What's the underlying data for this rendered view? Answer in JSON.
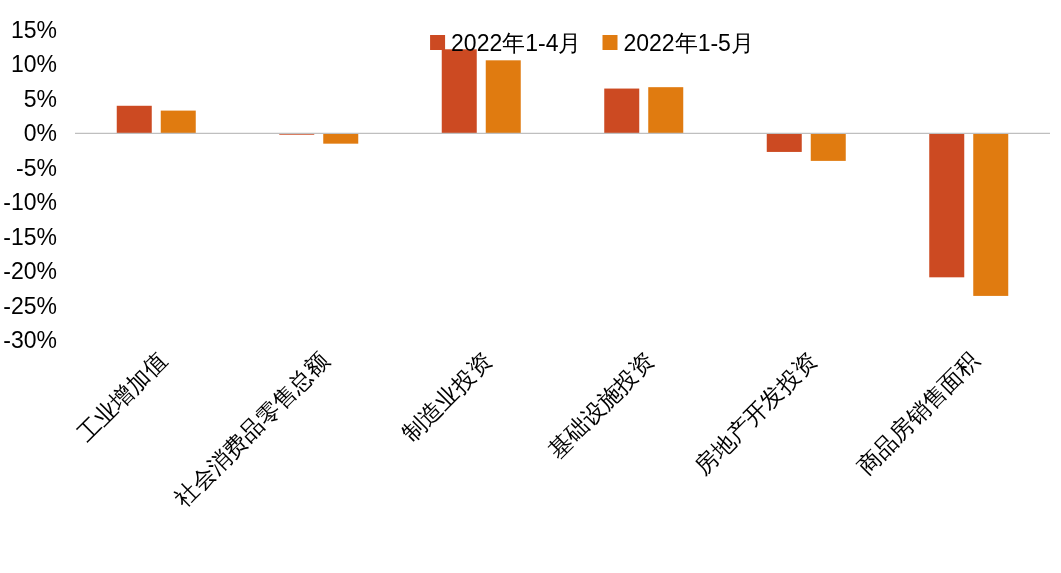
{
  "chart_data": {
    "type": "bar",
    "categories": [
      "工业增加值",
      "社会消费品零售总额",
      "制造业投资",
      "基础设施投资",
      "房地产开发投资",
      "商品房销售面积"
    ],
    "series": [
      {
        "name": "2022年1-4月",
        "color": "#cc4a22",
        "values": [
          4.0,
          -0.2,
          12.2,
          6.5,
          -2.7,
          -20.9
        ]
      },
      {
        "name": "2022年1-5月",
        "color": "#e07b10",
        "values": [
          3.3,
          -1.5,
          10.6,
          6.7,
          -4.0,
          -23.6
        ]
      }
    ],
    "ylim": [
      -30,
      15
    ],
    "yticks": [
      {
        "value": 15,
        "label": "15%"
      },
      {
        "value": 10,
        "label": "10%"
      },
      {
        "value": 5,
        "label": "5%"
      },
      {
        "value": 0,
        "label": "0%"
      },
      {
        "value": -5,
        "label": "-5%"
      },
      {
        "value": -10,
        "label": "-10%"
      },
      {
        "value": -15,
        "label": "-15%"
      },
      {
        "value": -20,
        "label": "-20%"
      },
      {
        "value": -25,
        "label": "-25%"
      },
      {
        "value": -30,
        "label": "-30%"
      }
    ],
    "legend": "top"
  }
}
